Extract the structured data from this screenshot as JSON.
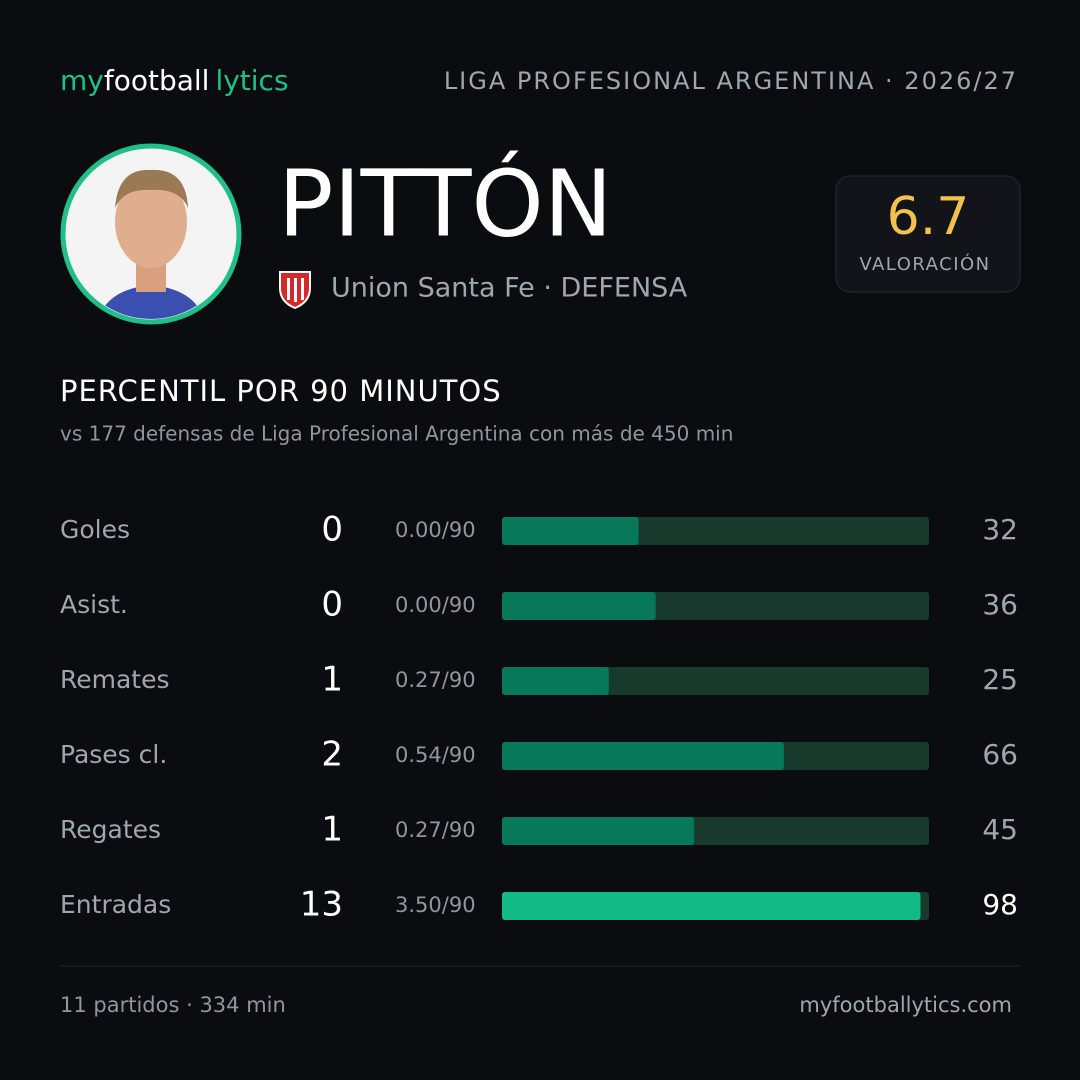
{
  "header": {
    "brand": [
      "my",
      "football",
      "lytics"
    ],
    "league": "LIGA PROFESIONAL ARGENTINA · 2026/27"
  },
  "player": {
    "name": "PITTÓN",
    "team_line": "Union Santa Fe · DEFENSA",
    "rating": "6.7",
    "rating_label": "VALORACIÓN"
  },
  "section": {
    "title": "PERCENTIL POR 90 MINUTOS",
    "subtitle": "vs 177 defensas de Liga Profesional Argentina con más de 450 min"
  },
  "stats": {
    "percentile_lim": [
      0,
      100
    ],
    "track_color": "#173a2c",
    "rows": [
      {
        "label": "Goles",
        "total": 0,
        "per90": "0.00/90",
        "percentile": 32,
        "color": "#08785a"
      },
      {
        "label": "Asist.",
        "total": 0,
        "per90": "0.00/90",
        "percentile": 36,
        "color": "#08785a"
      },
      {
        "label": "Remates",
        "total": 1,
        "per90": "0.27/90",
        "percentile": 25,
        "color": "#08785a"
      },
      {
        "label": "Pases cl.",
        "total": 2,
        "per90": "0.54/90",
        "percentile": 66,
        "color": "#08785a"
      },
      {
        "label": "Regates",
        "total": 1,
        "per90": "0.27/90",
        "percentile": 45,
        "color": "#08785a"
      },
      {
        "label": "Entradas",
        "total": 13,
        "per90": "3.50/90",
        "percentile": 98,
        "color": "#12bb85"
      }
    ]
  },
  "footer": {
    "summary": "11 partidos · 334 min",
    "site": "myfootballytics.com"
  }
}
